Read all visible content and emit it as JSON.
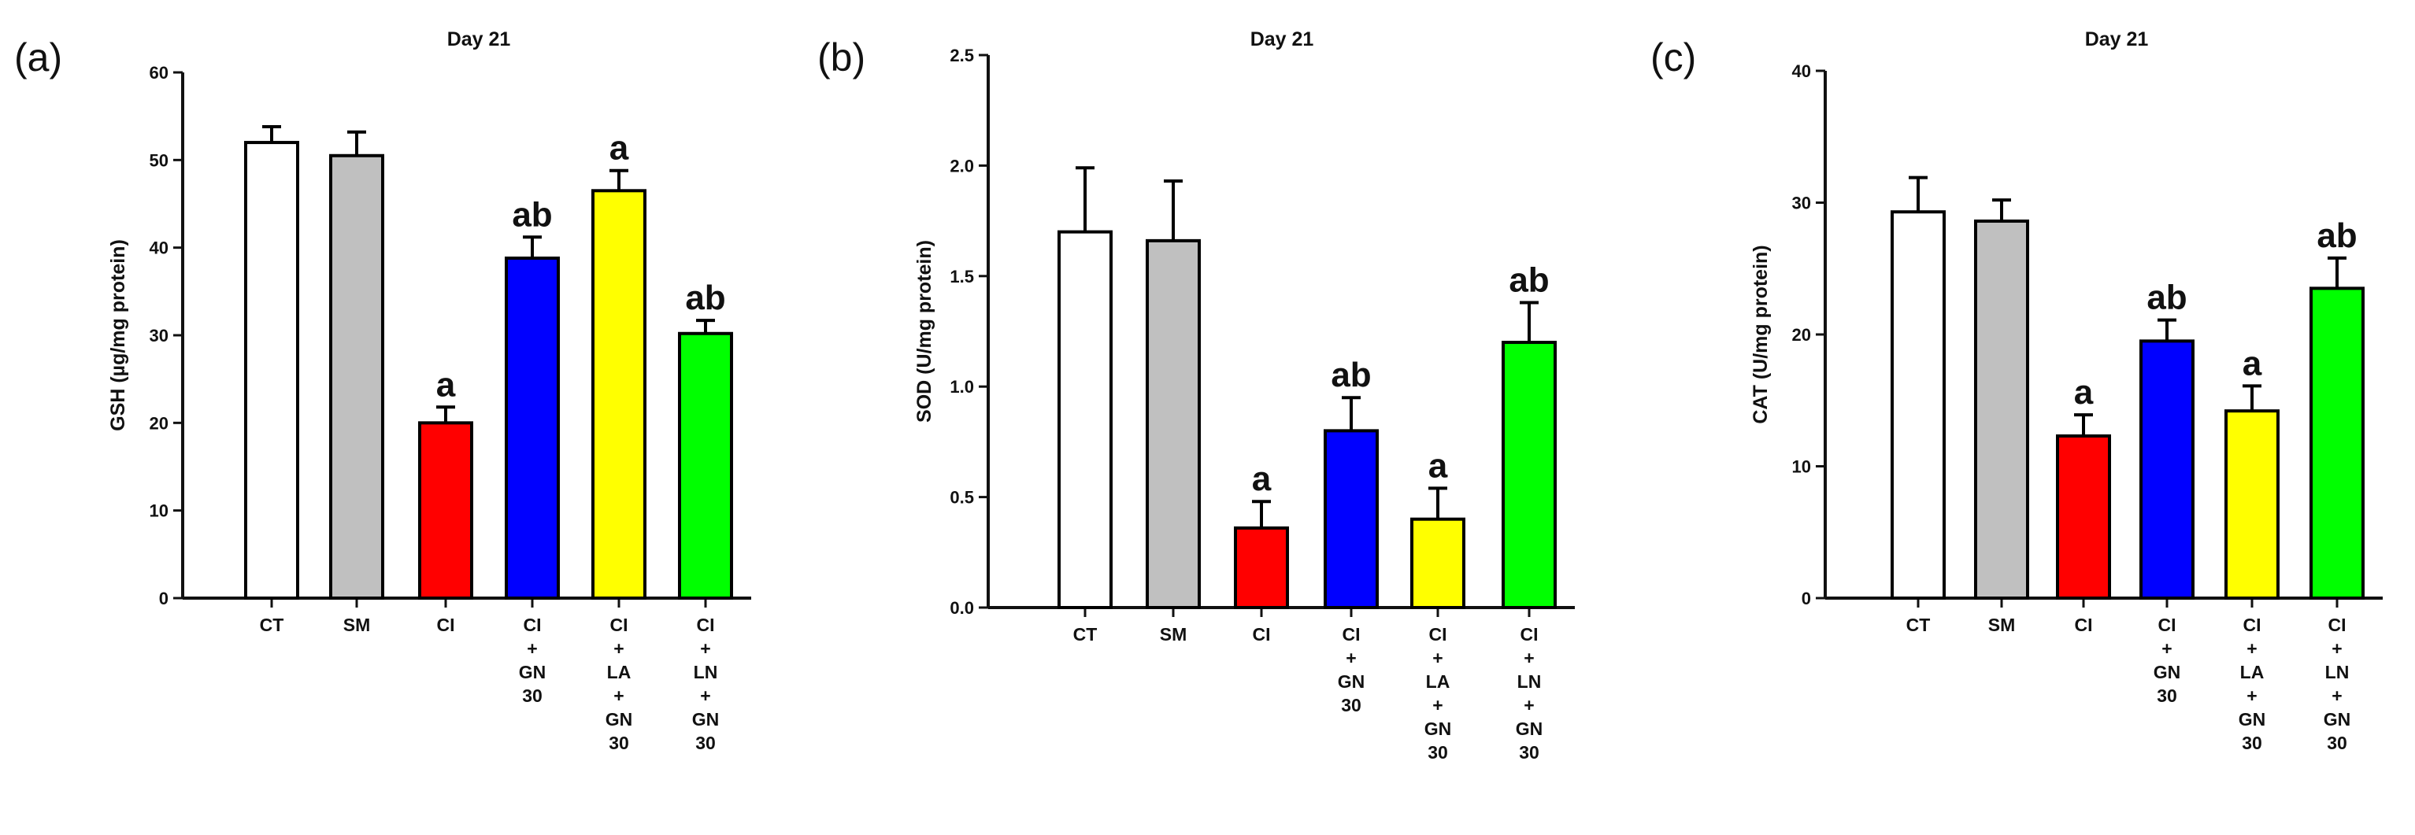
{
  "colors": {
    "axis": "#111111",
    "bar_stroke": "#000000",
    "CT": "#ffffff",
    "SM": "#c0c0c0",
    "CI": "#ff0000",
    "CI_GN30": "#0000ff",
    "CI_LA_GN30": "#ffff00",
    "CI_LN_GN30": "#00ff00"
  },
  "chart_data": [
    {
      "type": "bar",
      "panel_label": "(a)",
      "title": "Day 21",
      "ylabel": "GSH (µg/mg protein)",
      "ylim": [
        0,
        60
      ],
      "yticks": [
        "0",
        "10",
        "20",
        "30",
        "40",
        "50",
        "60"
      ],
      "categories": [
        [
          "CT"
        ],
        [
          "SM"
        ],
        [
          "CI"
        ],
        [
          "CI",
          "+",
          "GN",
          "30"
        ],
        [
          "CI",
          "+",
          "LA",
          "+",
          "GN",
          "30"
        ],
        [
          "CI",
          "+",
          "LN",
          "+",
          "GN",
          "30"
        ]
      ],
      "series": [
        {
          "name": "GSH",
          "values": [
            52,
            50.5,
            20,
            38.8,
            46.5,
            30.2
          ],
          "errors": [
            1.8,
            2.7,
            1.8,
            2.4,
            2.3,
            1.5
          ],
          "colors": [
            "CT",
            "SM",
            "CI",
            "CI_GN30",
            "CI_LA_GN30",
            "CI_LN_GN30"
          ],
          "annotations": [
            "",
            "",
            "a",
            "ab",
            "a",
            "ab"
          ]
        }
      ]
    },
    {
      "type": "bar",
      "panel_label": "(b)",
      "title": "Day 21",
      "ylabel": "SOD (U/mg protein)",
      "ylim": [
        0,
        2.5
      ],
      "yticks": [
        "0.0",
        "0.5",
        "1.0",
        "1.5",
        "2.0",
        "2.5"
      ],
      "categories": [
        [
          "CT"
        ],
        [
          "SM"
        ],
        [
          "CI"
        ],
        [
          "CI",
          "+",
          "GN",
          "30"
        ],
        [
          "CI",
          "+",
          "LA",
          "+",
          "GN",
          "30"
        ],
        [
          "CI",
          "+",
          "LN",
          "+",
          "GN",
          "30"
        ]
      ],
      "series": [
        {
          "name": "SOD",
          "values": [
            1.7,
            1.66,
            0.36,
            0.8,
            0.4,
            1.2
          ],
          "errors": [
            0.29,
            0.27,
            0.12,
            0.15,
            0.14,
            0.18
          ],
          "colors": [
            "CT",
            "SM",
            "CI",
            "CI_GN30",
            "CI_LA_GN30",
            "CI_LN_GN30"
          ],
          "annotations": [
            "",
            "",
            "a",
            "ab",
            "a",
            "ab"
          ]
        }
      ]
    },
    {
      "type": "bar",
      "panel_label": "(c)",
      "title": "Day 21",
      "ylabel": "CAT (U/mg protein)",
      "ylim": [
        0,
        40
      ],
      "yticks": [
        "0",
        "10",
        "20",
        "30",
        "40"
      ],
      "categories": [
        [
          "CT"
        ],
        [
          "SM"
        ],
        [
          "CI"
        ],
        [
          "CI",
          "+",
          "GN",
          "30"
        ],
        [
          "CI",
          "+",
          "LA",
          "+",
          "GN",
          "30"
        ],
        [
          "CI",
          "+",
          "LN",
          "+",
          "GN",
          "30"
        ]
      ],
      "series": [
        {
          "name": "CAT",
          "values": [
            29.3,
            28.6,
            12.3,
            19.5,
            14.2,
            23.5
          ],
          "errors": [
            2.6,
            1.6,
            1.6,
            1.6,
            1.9,
            2.3
          ],
          "colors": [
            "CT",
            "SM",
            "CI",
            "CI_GN30",
            "CI_LA_GN30",
            "CI_LN_GN30"
          ],
          "annotations": [
            "",
            "",
            "a",
            "ab",
            "a",
            "ab"
          ]
        }
      ]
    }
  ]
}
